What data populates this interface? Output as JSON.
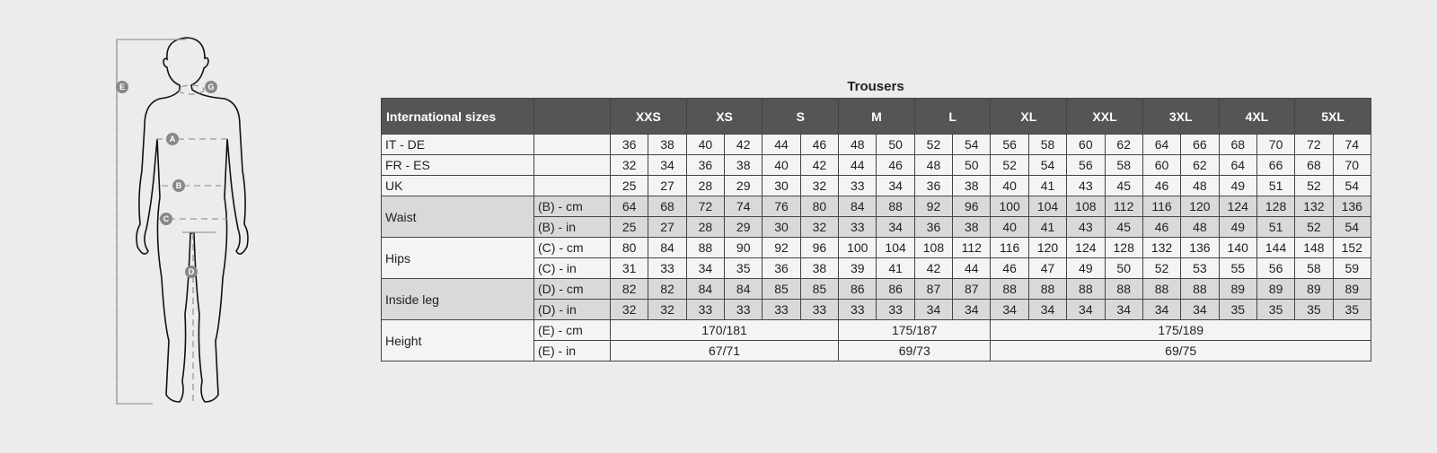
{
  "title": "Trousers",
  "figure": {
    "labels": [
      "A",
      "B",
      "C",
      "D",
      "E",
      "G"
    ]
  },
  "header": {
    "label": "International sizes",
    "sizes": [
      "XXS",
      "XS",
      "S",
      "M",
      "L",
      "XL",
      "XXL",
      "3XL",
      "4XL",
      "5XL"
    ]
  },
  "rows": [
    {
      "group": "IT - DE",
      "unit": "",
      "values": [
        "36",
        "38",
        "40",
        "42",
        "44",
        "46",
        "48",
        "50",
        "52",
        "54",
        "56",
        "58",
        "60",
        "62",
        "64",
        "66",
        "68",
        "70",
        "72",
        "74"
      ]
    },
    {
      "group": "FR - ES",
      "unit": "",
      "values": [
        "32",
        "34",
        "36",
        "38",
        "40",
        "42",
        "44",
        "46",
        "48",
        "50",
        "52",
        "54",
        "56",
        "58",
        "60",
        "62",
        "64",
        "66",
        "68",
        "70"
      ]
    },
    {
      "group": "UK",
      "unit": "",
      "values": [
        "25",
        "27",
        "28",
        "29",
        "30",
        "32",
        "33",
        "34",
        "36",
        "38",
        "40",
        "41",
        "43",
        "45",
        "46",
        "48",
        "49",
        "51",
        "52",
        "54"
      ]
    },
    {
      "group": "Waist",
      "unit": "(B) - cm",
      "shade": true,
      "span": 2,
      "values": [
        "64",
        "68",
        "72",
        "74",
        "76",
        "80",
        "84",
        "88",
        "92",
        "96",
        "100",
        "104",
        "108",
        "112",
        "116",
        "120",
        "124",
        "128",
        "132",
        "136"
      ]
    },
    {
      "unit": "(B) - in",
      "shade": true,
      "values": [
        "25",
        "27",
        "28",
        "29",
        "30",
        "32",
        "33",
        "34",
        "36",
        "38",
        "40",
        "41",
        "43",
        "45",
        "46",
        "48",
        "49",
        "51",
        "52",
        "54"
      ]
    },
    {
      "group": "Hips",
      "unit": "(C) - cm",
      "span": 2,
      "values": [
        "80",
        "84",
        "88",
        "90",
        "92",
        "96",
        "100",
        "104",
        "108",
        "112",
        "116",
        "120",
        "124",
        "128",
        "132",
        "136",
        "140",
        "144",
        "148",
        "152"
      ]
    },
    {
      "unit": "(C) - in",
      "values": [
        "31",
        "33",
        "34",
        "35",
        "36",
        "38",
        "39",
        "41",
        "42",
        "44",
        "46",
        "47",
        "49",
        "50",
        "52",
        "53",
        "55",
        "56",
        "58",
        "59"
      ]
    },
    {
      "group": "Inside leg",
      "unit": "(D) - cm",
      "shade": true,
      "span": 2,
      "values": [
        "82",
        "82",
        "84",
        "84",
        "85",
        "85",
        "86",
        "86",
        "87",
        "87",
        "88",
        "88",
        "88",
        "88",
        "88",
        "88",
        "89",
        "89",
        "89",
        "89"
      ]
    },
    {
      "unit": "(D) - in",
      "shade": true,
      "values": [
        "32",
        "32",
        "33",
        "33",
        "33",
        "33",
        "33",
        "33",
        "34",
        "34",
        "34",
        "34",
        "34",
        "34",
        "34",
        "34",
        "35",
        "35",
        "35",
        "35"
      ]
    },
    {
      "group": "Height",
      "unit": "(E) - cm",
      "span": 2,
      "merged": [
        {
          "value": "170/181",
          "cols": 6
        },
        {
          "value": "175/187",
          "cols": 4
        },
        {
          "value": "175/189",
          "cols": 10
        }
      ]
    },
    {
      "unit": "(E) - in",
      "merged": [
        {
          "value": "67/71",
          "cols": 6
        },
        {
          "value": "69/73",
          "cols": 4
        },
        {
          "value": "69/75",
          "cols": 10
        }
      ]
    }
  ],
  "colors": {
    "header_bg": "#555555",
    "shade_bg": "#d9d9d9",
    "row_bg": "#f4f4f4",
    "page_bg": "#ececec"
  }
}
